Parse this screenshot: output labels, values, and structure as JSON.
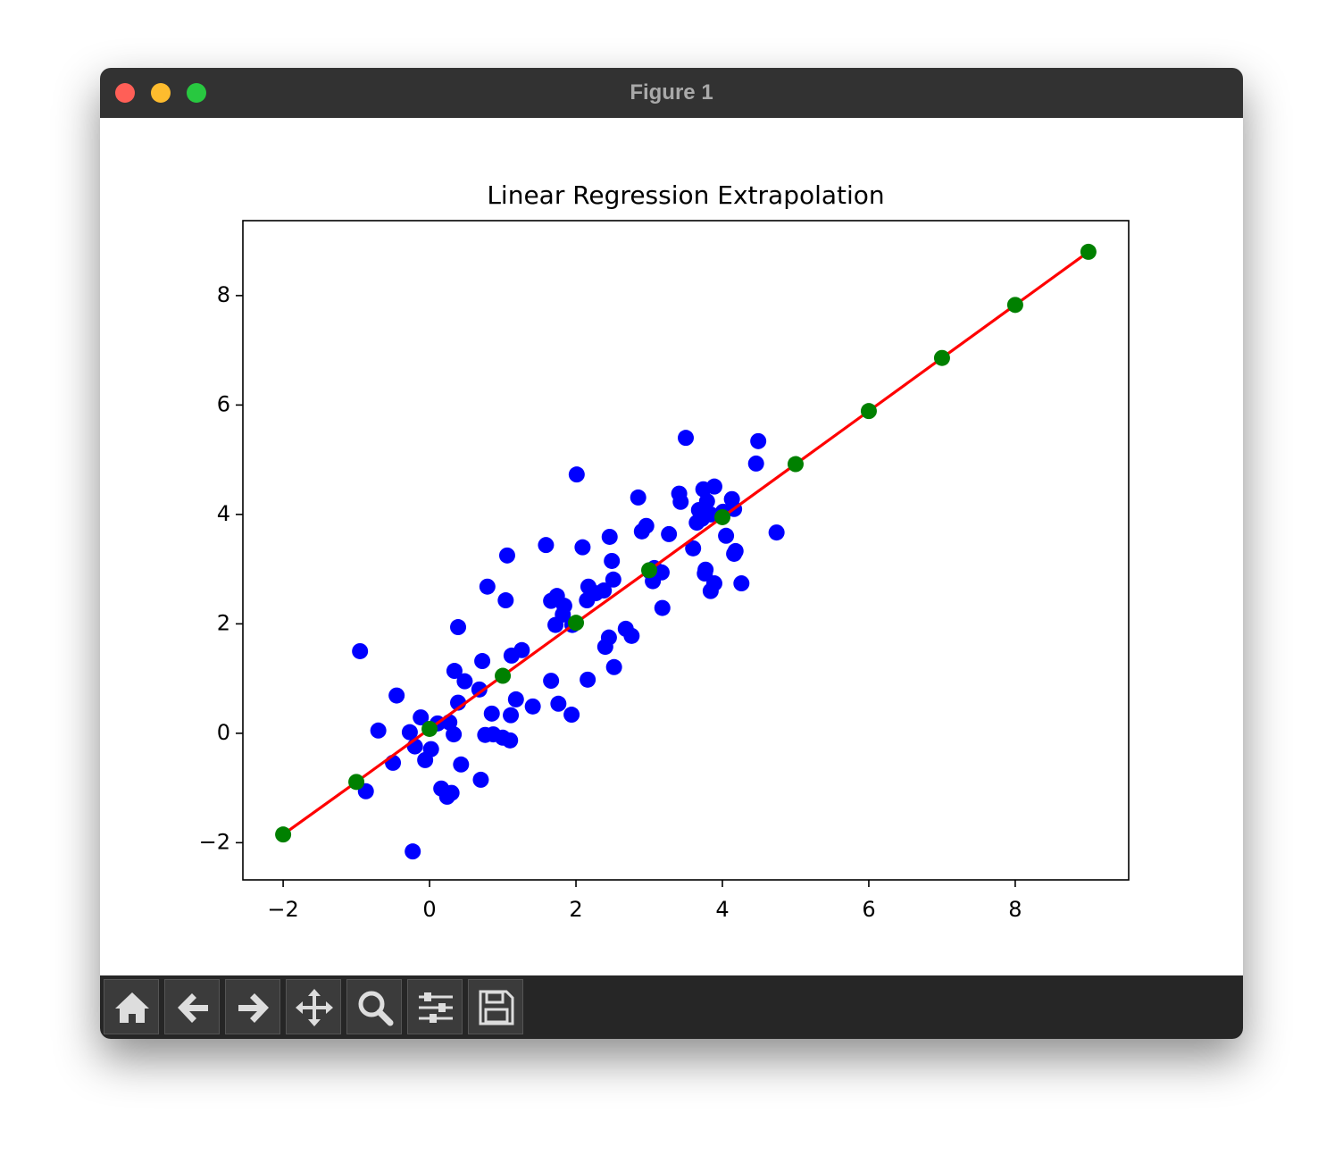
{
  "window": {
    "title": "Figure 1"
  },
  "chart_data": {
    "type": "scatter",
    "title": "Linear Regression Extrapolation",
    "xlim": [
      -2.55,
      9.55
    ],
    "ylim": [
      -2.68,
      9.37
    ],
    "xticks": [
      {
        "value": -2,
        "label": "−2"
      },
      0,
      2,
      4,
      6,
      8
    ],
    "yticks": [
      {
        "value": -2,
        "label": "−2"
      },
      0,
      2,
      4,
      6,
      8
    ],
    "series": [
      {
        "type": "scatter",
        "color": "#0000ff",
        "x": [
          -0.95,
          -0.45,
          -0.7,
          -0.5,
          -0.87,
          -0.27,
          -0.23,
          -0.12,
          -0.2,
          -0.06,
          0.02,
          0.11,
          0.27,
          0.33,
          0.16,
          0.24,
          0.3,
          0.34,
          0.39,
          0.39,
          0.48,
          0.43,
          0.7,
          0.72,
          0.68,
          0.79,
          0.76,
          0.87,
          0.85,
          1.0,
          1.1,
          1.04,
          1.06,
          1.12,
          1.11,
          1.18,
          1.26,
          1.41,
          1.59,
          1.66,
          1.76,
          1.66,
          1.72,
          1.74,
          1.82,
          1.84,
          1.95,
          1.94,
          2.01,
          2.09,
          2.16,
          2.15,
          2.17,
          2.27,
          2.38,
          2.4,
          2.45,
          2.46,
          2.49,
          2.51,
          2.52,
          2.68,
          2.76,
          2.85,
          2.9,
          2.96,
          3.01,
          3.05,
          3.07,
          3.17,
          3.18,
          3.27,
          3.5,
          3.41,
          3.43,
          3.6,
          3.65,
          3.68,
          3.72,
          3.74,
          3.77,
          3.79,
          3.84,
          3.89,
          3.76,
          3.77,
          3.84,
          3.89,
          4.01,
          4.05,
          4.13,
          4.16,
          4.16,
          4.18,
          4.26,
          4.46,
          4.49,
          4.74
        ],
        "values": [
          1.5,
          0.69,
          0.05,
          -0.54,
          -1.06,
          0.02,
          -2.16,
          0.29,
          -0.24,
          -0.49,
          -0.29,
          0.18,
          0.2,
          -0.02,
          -1.01,
          -1.16,
          -1.09,
          1.14,
          1.94,
          0.56,
          0.95,
          -0.57,
          -0.85,
          1.32,
          0.8,
          2.68,
          -0.03,
          -0.02,
          0.36,
          -0.08,
          -0.13,
          2.43,
          3.25,
          1.42,
          0.33,
          0.62,
          1.52,
          0.49,
          3.44,
          0.96,
          0.54,
          2.42,
          1.98,
          2.51,
          2.17,
          2.33,
          1.98,
          0.34,
          4.73,
          3.4,
          0.98,
          2.43,
          2.68,
          2.56,
          2.61,
          1.58,
          1.75,
          3.59,
          3.15,
          2.81,
          1.21,
          1.91,
          1.78,
          4.31,
          3.69,
          3.79,
          2.96,
          2.78,
          3.02,
          2.94,
          2.29,
          3.64,
          5.4,
          4.38,
          4.23,
          3.38,
          3.85,
          4.08,
          3.92,
          4.46,
          4.05,
          4.24,
          4.0,
          4.51,
          2.92,
          2.99,
          2.6,
          2.74,
          4.05,
          3.61,
          4.28,
          4.1,
          3.28,
          3.33,
          2.74,
          4.93,
          5.34,
          3.67
        ]
      },
      {
        "type": "line",
        "color": "#ff0000",
        "x": [
          -2,
          -1,
          0,
          1,
          2,
          3,
          4,
          5,
          6,
          7,
          8,
          9
        ],
        "values": [
          -1.85,
          -0.89,
          0.08,
          1.05,
          2.02,
          2.98,
          3.95,
          4.92,
          5.89,
          6.86,
          7.83,
          8.8
        ]
      },
      {
        "type": "scatter",
        "color": "#008000",
        "x": [
          -2,
          -1,
          0,
          1,
          2,
          3,
          4,
          5,
          6,
          7,
          8,
          9
        ],
        "values": [
          -1.85,
          -0.89,
          0.08,
          1.05,
          2.02,
          2.98,
          3.95,
          4.92,
          5.89,
          6.86,
          7.83,
          8.8
        ]
      }
    ]
  }
}
